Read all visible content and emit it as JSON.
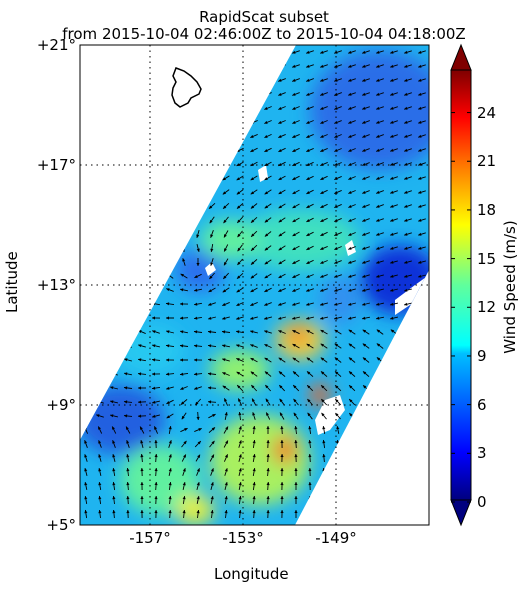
{
  "title_line1": "RapidScat subset",
  "title_line2": "from 2015-10-04 02:46:00Z to 2015-10-04 04:18:00Z",
  "x_axis": {
    "label": "Longitude",
    "ticks": [
      "-157°",
      "-153°",
      "-149°"
    ]
  },
  "y_axis": {
    "label": "Latitude",
    "ticks": [
      "+21°",
      "+17°",
      "+13°",
      "+9°",
      "+5°"
    ]
  },
  "colorbar": {
    "label": "Wind Speed (m/s)",
    "ticks": [
      "0",
      "3",
      "6",
      "9",
      "12",
      "15",
      "18",
      "21",
      "24"
    ],
    "range": [
      0,
      26.5
    ]
  },
  "map": {
    "lon_range": [
      -159.3,
      -147.7
    ],
    "lat_range": [
      5,
      21
    ],
    "gridlines": "dotted"
  }
}
